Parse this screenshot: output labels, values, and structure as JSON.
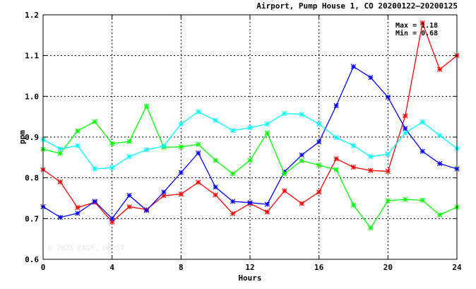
{
  "chart_data": {
    "type": "line",
    "title": "Airport, Pump House 1, CO 20200122–20200125",
    "xlabel": "Hours",
    "ylabel": "ppm",
    "xlim": [
      0,
      24
    ],
    "ylim": [
      0.6,
      1.2
    ],
    "xticks": [
      0,
      4,
      8,
      12,
      16,
      20,
      24
    ],
    "xtick_labels": [
      "0",
      "4",
      "8",
      "12",
      "16",
      "20",
      "24"
    ],
    "yticks": [
      0.6,
      0.7,
      0.8,
      0.9,
      1.0,
      1.1,
      1.2
    ],
    "ytick_labels": [
      "0.6",
      "0.7",
      "0.8",
      "0.9",
      "1.0",
      "1.1",
      "1.2"
    ],
    "grid": true,
    "annotations": {
      "max": "Max = 1.18",
      "min": "Min = 0.68"
    },
    "watermark": "© 2025  ENVF, HKUST",
    "series": [
      {
        "color": "#ff0000",
        "x": [
          0,
          1,
          2,
          3,
          4,
          5,
          6,
          7,
          8,
          9,
          10,
          11,
          12,
          13,
          14,
          15,
          16,
          17,
          18,
          19,
          20,
          21,
          22,
          23,
          24
        ],
        "y": [
          0.82,
          0.79,
          0.727,
          0.74,
          0.692,
          0.729,
          0.722,
          0.756,
          0.76,
          0.789,
          0.758,
          0.712,
          0.737,
          0.716,
          0.768,
          0.737,
          0.765,
          0.847,
          0.826,
          0.818,
          0.816,
          0.952,
          1.18,
          1.066,
          1.1
        ]
      },
      {
        "color": "#0000ff",
        "x": [
          0,
          1,
          2,
          3,
          4,
          5,
          6,
          7,
          8,
          9,
          10,
          11,
          12,
          13,
          14,
          15,
          16,
          17,
          18,
          19,
          20,
          21,
          22,
          23,
          24
        ],
        "y": [
          0.729,
          0.703,
          0.713,
          0.742,
          0.7,
          0.757,
          0.72,
          0.765,
          0.813,
          0.861,
          0.777,
          0.742,
          0.739,
          0.735,
          0.815,
          0.856,
          0.888,
          0.977,
          1.073,
          1.046,
          0.998,
          0.921,
          0.865,
          0.835,
          0.822
        ]
      },
      {
        "color": "#00ff00",
        "x": [
          0,
          1,
          2,
          3,
          4,
          5,
          6,
          7,
          8,
          9,
          10,
          11,
          12,
          13,
          14,
          15,
          16,
          17,
          18,
          19,
          20,
          21,
          22,
          23,
          24
        ],
        "y": [
          0.87,
          0.86,
          0.915,
          0.938,
          0.884,
          0.889,
          0.976,
          0.875,
          0.876,
          0.882,
          0.843,
          0.81,
          0.843,
          0.91,
          0.81,
          0.842,
          0.831,
          0.82,
          0.733,
          0.677,
          0.744,
          0.747,
          0.745,
          0.709,
          0.728
        ]
      },
      {
        "color": "#00ffff",
        "x": [
          0,
          1,
          2,
          3,
          4,
          5,
          6,
          7,
          8,
          9,
          10,
          11,
          12,
          13,
          14,
          15,
          16,
          17,
          18,
          19,
          20,
          21,
          22,
          23,
          24
        ],
        "y": [
          0.894,
          0.871,
          0.879,
          0.822,
          0.825,
          0.852,
          0.869,
          0.878,
          0.932,
          0.962,
          0.941,
          0.916,
          0.923,
          0.932,
          0.958,
          0.956,
          0.932,
          0.899,
          0.879,
          0.852,
          0.858,
          0.91,
          0.937,
          0.904,
          0.872
        ]
      }
    ]
  }
}
